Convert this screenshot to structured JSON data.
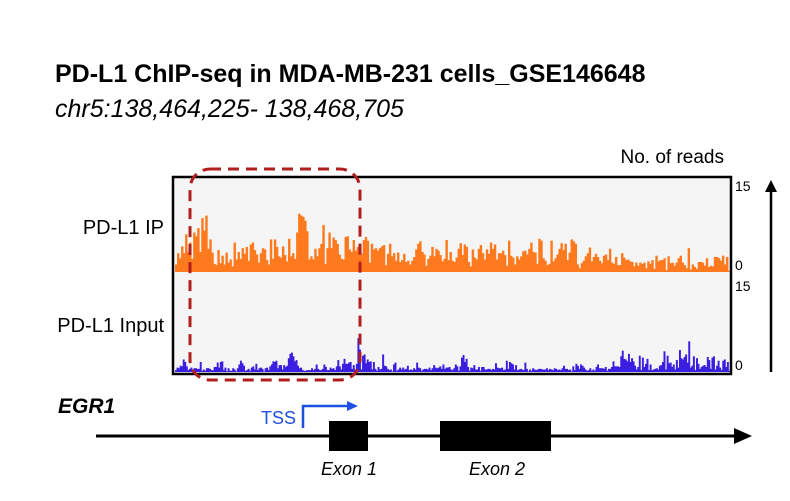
{
  "title": "PD-L1 ChIP-seq in MDA-MB-231 cells_GSE146648",
  "subtitle": "chr5:138,464,225- 138,468,705",
  "colors": {
    "ip": "#FF7A1F",
    "input": "#3A1FE0",
    "highlight": "#B01E1E",
    "tss": "#1F4FE0",
    "panel_bg": "#F5F5F5"
  },
  "chart_data": {
    "type": "area",
    "yaxis_label": "No. of reads",
    "tracks": [
      {
        "name": "PD-L1 IP",
        "ylim": [
          0,
          15
        ],
        "tick_labels": [
          "15",
          "0"
        ],
        "values": [
          1.2,
          3.0,
          2.2,
          4.1,
          3.0,
          6.0,
          3.2,
          4.7,
          2.1,
          6.3,
          5.7,
          7.0,
          3.2,
          8.6,
          6.6,
          9.0,
          3.7,
          5.2,
          3.1,
          1.3,
          1.1,
          3.5,
          1.4,
          2.6,
          1.2,
          3.1,
          1.5,
          2.0,
          0.9,
          4.7,
          2.0,
          3.2,
          2.1,
          3.8,
          2.9,
          4.0,
          1.8,
          4.4,
          4.7,
          3.5,
          2.8,
          1.5,
          3.0,
          3.8,
          3.6,
          1.9,
          1.2,
          5.2,
          2.1,
          5.2,
          4.0,
          2.5,
          2.3,
          4.1,
          2.7,
          1.7,
          5.3,
          2.5,
          3.0,
          2.1,
          6.3,
          9.3,
          9.0,
          8.8,
          8.2,
          6.5,
          2.0,
          2.5,
          2.0,
          3.7,
          2.5,
          3.8,
          4.5,
          7.5,
          1.3,
          3.8,
          6.3,
          3.8,
          5.5,
          5.1,
          4.5,
          2.8,
          2.1,
          2.0,
          5.6,
          5.7,
          3.6,
          3.2,
          5.1,
          3.4,
          4.0,
          3.8,
          2.9,
          5.1,
          5.6,
          5.0,
          1.5,
          4.5,
          3.6,
          3.8,
          3.4,
          3.8,
          4.1,
          4.3,
          1.1,
          2.9,
          4.5,
          2.5,
          3.0,
          1.8,
          3.1,
          1.6,
          1.9,
          2.9,
          1.6,
          1.8,
          1.2,
          1.8,
          2.4,
          3.6,
          4.5,
          4.9,
          3.2,
          2.8,
          1.0,
          2.1,
          2.6,
          4.0,
          2.5,
          3.7,
          3.4,
          2.7,
          1.7,
          2.1,
          5.1,
          1.9,
          3.2,
          1.8,
          1.6,
          2.3,
          3.7,
          4.6,
          2.7,
          4.4,
          4.0,
          1.6,
          0.9,
          3.6,
          2.3,
          2.0,
          3.7,
          4.3,
          3.0,
          2.0,
          3.6,
          2.9,
          4.7,
          3.7,
          4.4,
          2.0,
          3.0,
          3.0,
          3.4,
          2.7,
          1.0,
          5.0,
          2.6,
          2.3,
          1.2,
          2.5,
          2.0,
          2.5,
          3.3,
          3.4,
          2.8,
          3.7,
          4.7,
          3.2,
          3.1,
          1.3,
          5.3,
          5.0,
          2.2,
          1.8,
          1.1,
          1.3,
          5.0,
          1.7,
          2.2,
          2.8,
          3.7,
          4.6,
          3.5,
          4.5,
          1.9,
          3.1,
          5.2,
          4.9,
          4.5,
          1.2,
          0.6,
          1.4,
          1.8,
          2.5,
          3.0,
          3.9,
          1.7,
          2.4,
          2.9,
          2.4,
          1.8,
          1.4,
          2.6,
          2.8,
          1.9,
          3.7,
          1.5,
          1.3,
          2.4,
          1.1,
          1.1,
          3.0,
          2.3,
          1.9,
          2.0,
          1.7,
          1.6,
          0.9,
          1.5,
          1.0,
          1.5,
          1.3,
          1.5,
          0.6,
          1.7,
          1.3,
          1.9,
          0.5,
          2.6,
          1.7,
          1.9,
          1.9,
          2.2,
          0.3,
          2.5,
          1.4,
          1.5,
          1.0,
          1.5,
          2.2,
          2.6,
          1.5,
          1.1,
          0.6,
          3.8,
          0.4,
          1.2,
          0.8,
          0.5,
          1.6,
          1.6,
          1.5,
          1.0,
          2.2,
          0.8,
          1.0,
          0.9,
          2.4,
          2.4,
          2.2,
          1.8,
          2.6,
          1.2,
          2.4,
          0.2
        ]
      },
      {
        "name": "PD-L1 Input",
        "ylim": [
          0,
          15
        ],
        "tick_labels": [
          "15",
          "0"
        ],
        "values": [
          0.3,
          0.7,
          0.6,
          1.0,
          0.9,
          2.0,
          1.6,
          0.9,
          0.3,
          0.5,
          0.7,
          0.2,
          0.6,
          0.6,
          0.5,
          0.5,
          1.6,
          0.2,
          0.4,
          0.2,
          0.6,
          0.6,
          0.5,
          0.3,
          0.3,
          0.8,
          0.8,
          1.5,
          0.7,
          1.6,
          1.7,
          0.3,
          0.7,
          0.1,
          0.6,
          0.2,
          0.2,
          0.6,
          0.4,
          0.1,
          0.6,
          1.2,
          1.8,
          1.4,
          1.0,
          0.2,
          0.3,
          0.5,
          0.2,
          0.7,
          0.9,
          0.4,
          1.3,
          0.3,
          0.6,
          0.7,
          0.5,
          0.1,
          0.6,
          0.7,
          0.3,
          0.9,
          1.2,
          1.7,
          1.6,
          1.8,
          0.6,
          1.1,
          1.1,
          0.4,
          1.1,
          0.8,
          1.0,
          2.2,
          2.9,
          3.1,
          2.5,
          1.7,
          1.9,
          1.0,
          0.6,
          0.7,
          0.3,
          0.2,
          0.2,
          0.3,
          0.3,
          0.3,
          0.6,
          0.3,
          0.5,
          1.2,
          0.5,
          0.3,
          0.3,
          0.5,
          1.2,
          0.8,
          0.3,
          0.3,
          0.7,
          0.5,
          0.6,
          0.3,
          0.9,
          1.9,
          0.9,
          0.4,
          1.3,
          2.1,
          1.3,
          1.3,
          1.5,
          1.6,
          0.5,
          1.1,
          0.4,
          1.3,
          5.4,
          3.6,
          0.4,
          2.6,
          2.8,
          1.4,
          2.0,
          1.6,
          1.7,
          0.4,
          1.6,
          0.5,
          0.2,
          0.8,
          0.4,
          0.5,
          2.8,
          1.0,
          0.9,
          0.5,
          0.3,
          0.4,
          0.1,
          1.2,
          1.5,
          0.2,
          0.4,
          0.7,
          0.4,
          0.7,
          0.4,
          0.5,
          1.0,
          0.3,
          0.4,
          0.3,
          0.6,
          0.4,
          1.5,
          0.7,
          0.6,
          0.2,
          0.4,
          0.5,
          0.5,
          0.4,
          0.7,
          0.3,
          0.6,
          1.1,
          0.7,
          0.6,
          0.7,
          0.9,
          0.5,
          1.2,
          0.5,
          0.7,
          0.7,
          0.8,
          0.4,
          0.3,
          0.6,
          1.2,
          0.9,
          0.2,
          0.9,
          2.3,
          2.7,
          1.6,
          2.1,
          0.8,
          0.2,
          0.7,
          0.6,
          1.1,
          0.4,
          0.4,
          0.8,
          0.2,
          0.8,
          0.8,
          0.4,
          0.4,
          0.5,
          0.5,
          0.3,
          0.5,
          0.4,
          1.4,
          0.7,
          0.6,
          0.6,
          0.7,
          0.3,
          0.4,
          1.8,
          0.5,
          1.6,
          1.4,
          1.2,
          0.4,
          1.1,
          0.3,
          0.4,
          0.5,
          0.4,
          0.3,
          1.5,
          0.5,
          0.1,
          0.4,
          0.2,
          0.6,
          0.4,
          0.3,
          0.4,
          0.5,
          0.5,
          0.4,
          0.4,
          0.4,
          0.6,
          0.3,
          0.5,
          0.4,
          0.3,
          0.6,
          0.5,
          0.3,
          0.4,
          0.3,
          0.6,
          1.0,
          0.5,
          0.5,
          0.3,
          0.4,
          0.1,
          0.9,
          0.3,
          1.3,
          1.0,
          0.5,
          1.2,
          1.0,
          0.7,
          0.4,
          0.2,
          0.3,
          0.6,
          0.2,
          0.4,
          0.2,
          0.8,
          1.2,
          0.6,
          0.6,
          0.6,
          0.5,
          0.8,
          0.2,
          0.5,
          0.5,
          0.8,
          1.7,
          0.9,
          0.9,
          0.9,
          0.8,
          2.5,
          3.4,
          2.1,
          2.0,
          1.7,
          2.9,
          1.6,
          2.2,
          1.7,
          1.0,
          0.4,
          0.8,
          2.6,
          0.3,
          2.3,
          0.8,
          1.3,
          2.1,
          0.3,
          1.2,
          0.3,
          0.4,
          0.5,
          0.6,
          0.4,
          1.0,
          1.1,
          1.6,
          3.3,
          0.4,
          2.6,
          1.4,
          1.5,
          0.8,
          1.2,
          0.4,
          1.9,
          0.7,
          3.5,
          2.2,
          2.0,
          2.4,
          2.8,
          1.5,
          4.9,
          0.7,
          1.0,
          2.5,
          0.3,
          2.2,
          1.3,
          0.5,
          0.8,
          1.0,
          1.1,
          0.8,
          2.4,
          1.9,
          0.5,
          2.3,
          2.5,
          0.4,
          1.0,
          1.8,
          0.7,
          0.3,
          1.8,
          2.0,
          0.8,
          1.6,
          0.2
        ]
      }
    ],
    "gene": {
      "name": "EGR1",
      "tss_label": "TSS",
      "exons": [
        {
          "label": "Exon 1"
        },
        {
          "label": "Exon 2"
        }
      ]
    }
  }
}
